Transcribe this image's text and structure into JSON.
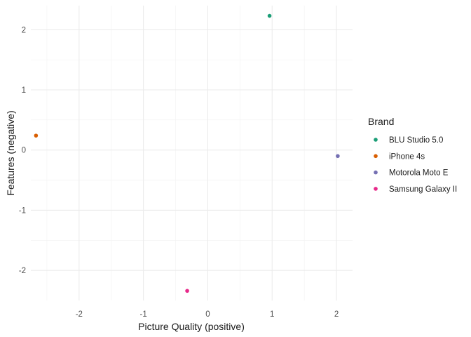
{
  "chart_data": {
    "type": "scatter",
    "xlabel": "Picture Quality (positive)",
    "ylabel": "Features (negative)",
    "xlim": [
      -2.75,
      2.25
    ],
    "ylim": [
      -2.5,
      2.4
    ],
    "x_ticks": [
      -2,
      -1,
      0,
      1,
      2
    ],
    "y_ticks": [
      -2,
      -1,
      0,
      1,
      2
    ],
    "x_tick_labels": [
      "-2",
      "-1",
      "0",
      "1",
      "2"
    ],
    "y_tick_labels": [
      "-2",
      "-1",
      "0",
      "1",
      "2"
    ],
    "grid": true,
    "legend": {
      "title": "Brand",
      "position": "right"
    },
    "series": [
      {
        "name": "BLU Studio 5.0",
        "color": "#1b9e77",
        "points": [
          {
            "x": 0.96,
            "y": 2.23
          }
        ]
      },
      {
        "name": "iPhone 4s",
        "color": "#d95f02",
        "points": [
          {
            "x": -2.67,
            "y": 0.24
          }
        ]
      },
      {
        "name": "Motorola Moto E",
        "color": "#7570b3",
        "points": [
          {
            "x": 2.02,
            "y": -0.1
          }
        ]
      },
      {
        "name": "Samsung Galaxy II",
        "color": "#e7298a",
        "points": [
          {
            "x": -0.32,
            "y": -2.34
          }
        ]
      }
    ]
  }
}
